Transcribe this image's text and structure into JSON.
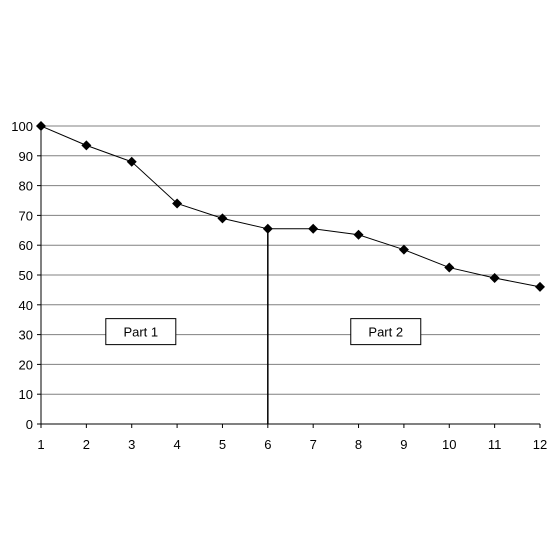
{
  "chart_data": {
    "type": "line",
    "title": "",
    "xlabel": "",
    "ylabel": "",
    "x": [
      1,
      2,
      3,
      4,
      5,
      6,
      7,
      8,
      9,
      10,
      11,
      12
    ],
    "series": [
      {
        "values": [
          100,
          93.5,
          88,
          74,
          69,
          65.5,
          65.5,
          63.5,
          58.5,
          52.5,
          49,
          46
        ]
      }
    ],
    "xlim": [
      1,
      12
    ],
    "ylim": [
      0,
      100
    ],
    "ytick_step": 10,
    "grid": "horizontal",
    "legend": "none",
    "marker": "diamond",
    "annotations": [
      {
        "text": "Part 1",
        "x": 3.2,
        "y": 31
      },
      {
        "text": "Part 2",
        "x": 8.6,
        "y": 31
      }
    ],
    "divider_x": 6,
    "colors": {
      "line": "#000000",
      "grid": "#808080",
      "axis": "#000000",
      "background": "#ffffff"
    }
  }
}
